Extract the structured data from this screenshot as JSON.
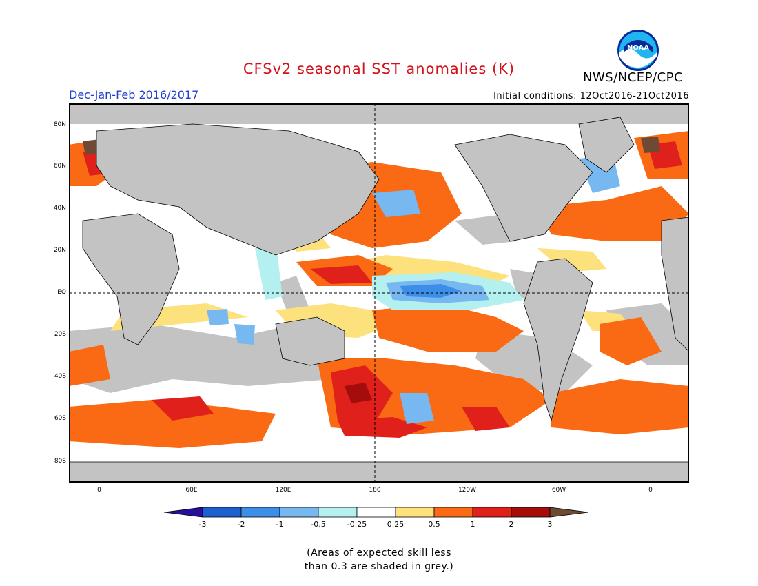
{
  "header": {
    "title": "CFSv2 seasonal SST anomalies (K)",
    "agency": "NWS/NCEP/CPC",
    "season": "Dec-Jan-Feb 2016/2017",
    "initial_conditions": "Initial conditions: 12Oct2016-21Oct2016",
    "logo_text": "NOAA",
    "logo_icon": "noaa-logo-icon"
  },
  "map": {
    "lat_labels": [
      "80N",
      "60N",
      "40N",
      "20N",
      "EQ",
      "20S",
      "40S",
      "60S",
      "80S"
    ],
    "lon_labels": [
      "0",
      "60E",
      "120E",
      "180",
      "120W",
      "60W",
      "0"
    ],
    "grey_meaning": "low-skill",
    "colors": {
      "land": "#c3c3c3",
      "grey_skill": "#c3c3c3",
      "ocean_neutral": "#ffffff",
      "coast": "#000000"
    }
  },
  "colorbar": {
    "tick_labels": [
      "-3",
      "-2",
      "-1",
      "-0.5",
      "-0.25",
      "0.25",
      "0.5",
      "1",
      "2",
      "3"
    ],
    "colors": [
      "#2a0f9a",
      "#1f5fd0",
      "#3c8ee8",
      "#78b8f0",
      "#b4f0f0",
      "#ffffff",
      "#fde17c",
      "#fa6a14",
      "#e0201a",
      "#a50d0d",
      "#6e4a34"
    ]
  },
  "note": {
    "line1": "(Areas of expected skill less",
    "line2": "than 0.3 are shaded in grey.)"
  }
}
